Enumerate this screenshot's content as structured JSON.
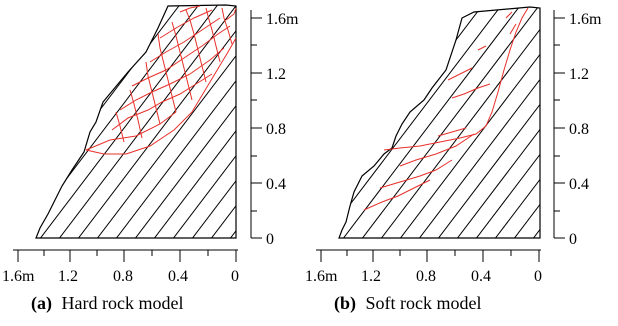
{
  "panels": [
    {
      "id": "a",
      "caption_letter": "(a)",
      "caption_text": "Hard rock model",
      "x_ticks": [
        "1.6m",
        "1.2",
        "0.8",
        "0.4",
        "0"
      ],
      "y_ticks": [
        "1.6m",
        "1.2",
        "0.8",
        "0.4",
        "0"
      ],
      "colors": {
        "joints": "#000000",
        "cracks": "#e8302a"
      }
    },
    {
      "id": "b",
      "caption_letter": "(b)",
      "caption_text": "Soft rock model",
      "x_ticks": [
        "1.6m",
        "1.2",
        "0.8",
        "0.4",
        "0"
      ],
      "y_ticks": [
        "1.6m",
        "1.2",
        "0.8",
        "0.4",
        "0"
      ],
      "colors": {
        "joints": "#000000",
        "cracks": "#e8302a"
      }
    }
  ]
}
